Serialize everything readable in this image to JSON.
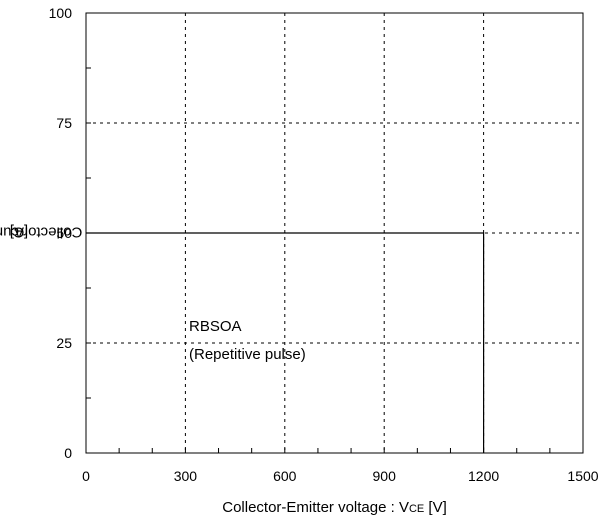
{
  "chart_data": {
    "type": "line",
    "title": "",
    "xlabel": {
      "text": "Collector-Emitter voltage : V",
      "sub": "CE",
      "unit": " [V]"
    },
    "ylabel": {
      "text": "Collector current : I",
      "sub": "C",
      "unit": " [A]"
    },
    "xlim": [
      0,
      1500
    ],
    "ylim": [
      0,
      100
    ],
    "xticks": [
      0,
      300,
      600,
      900,
      1200,
      1500
    ],
    "yticks": [
      0,
      25,
      50,
      75,
      100
    ],
    "grid": true,
    "series": [
      {
        "x": [
          0,
          1200,
          1200
        ],
        "y": [
          50,
          50,
          0
        ]
      }
    ],
    "annotations": [
      "RBSOA",
      "(Repetitive pulse)"
    ]
  }
}
